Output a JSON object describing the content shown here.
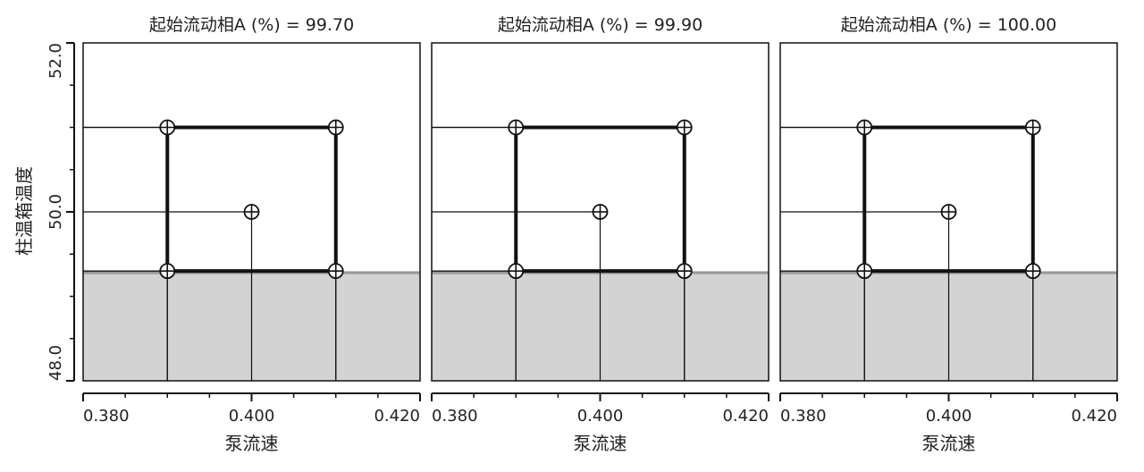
{
  "chart_data": {
    "type": "scatter",
    "ylabel": "柱温箱温度",
    "xlabel": "泵流速",
    "xlim": [
      0.38,
      0.42
    ],
    "ylim": [
      48.0,
      52.0
    ],
    "x_ticks": [
      "0.380",
      "0.400",
      "0.420"
    ],
    "y_ticks": [
      "48.0",
      "50.0",
      "52.0"
    ],
    "shaded_region": {
      "y_from": 48.0,
      "y_to": 49.3,
      "color": "#d3d3d3"
    },
    "design_points": [
      {
        "x": 0.39,
        "y": 51.0
      },
      {
        "x": 0.41,
        "y": 51.0
      },
      {
        "x": 0.4,
        "y": 50.0
      },
      {
        "x": 0.39,
        "y": 49.3
      },
      {
        "x": 0.41,
        "y": 49.3
      }
    ],
    "design_box": {
      "x": [
        0.39,
        0.41
      ],
      "y": [
        49.3,
        51.0
      ]
    },
    "panels": [
      {
        "title": "起始流动相A (%) = 99.70"
      },
      {
        "title": "起始流动相A (%) = 99.90"
      },
      {
        "title": "起始流动相A (%) = 100.00"
      }
    ]
  }
}
